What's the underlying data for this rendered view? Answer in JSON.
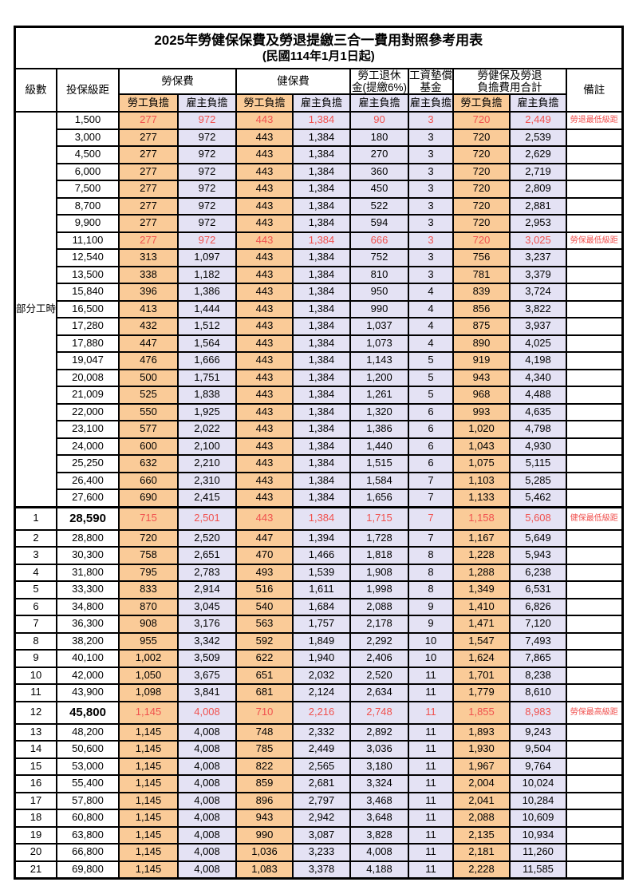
{
  "title": "2025年勞健保保費及勞退提繳三合一費用對照參考用表",
  "subtitle": "(民國114年1月1日起)",
  "columns": {
    "level": "級數",
    "bracket": "投保級距",
    "labor": "勞保費",
    "health": "健保費",
    "pension_line1": "勞工退休",
    "pension_line2": "金(提繳6%)",
    "fund_line1": "工資墊償",
    "fund_line2": "基金",
    "total_line1": "勞健保及勞退",
    "total_line2": "負擔費用合計",
    "note": "備註",
    "employee_label": "勞工負擔",
    "employer_label": "雇主負擔"
  },
  "part_time_label": "部分工時",
  "part_time_rowspan": 23,
  "colors": {
    "employee_bg": "#FACB98",
    "employer_bg": "#E4E2F4",
    "highlight_text": "#F0514E",
    "border": "#000000"
  },
  "rows": [
    {
      "level": "",
      "salary": "1,500",
      "values": [
        "277",
        "972",
        "443",
        "1,384",
        "90",
        "3",
        "720",
        "2,449"
      ],
      "note": "勞退最低級距",
      "highlight": true,
      "bold": false,
      "tall": false,
      "section": false
    },
    {
      "level": "",
      "salary": "3,000",
      "values": [
        "277",
        "972",
        "443",
        "1,384",
        "180",
        "3",
        "720",
        "2,539"
      ],
      "note": "",
      "highlight": false,
      "bold": false,
      "tall": false,
      "section": false
    },
    {
      "level": "",
      "salary": "4,500",
      "values": [
        "277",
        "972",
        "443",
        "1,384",
        "270",
        "3",
        "720",
        "2,629"
      ],
      "note": "",
      "highlight": false,
      "bold": false,
      "tall": false,
      "section": false
    },
    {
      "level": "",
      "salary": "6,000",
      "values": [
        "277",
        "972",
        "443",
        "1,384",
        "360",
        "3",
        "720",
        "2,719"
      ],
      "note": "",
      "highlight": false,
      "bold": false,
      "tall": false,
      "section": false
    },
    {
      "level": "",
      "salary": "7,500",
      "values": [
        "277",
        "972",
        "443",
        "1,384",
        "450",
        "3",
        "720",
        "2,809"
      ],
      "note": "",
      "highlight": false,
      "bold": false,
      "tall": false,
      "section": false
    },
    {
      "level": "",
      "salary": "8,700",
      "values": [
        "277",
        "972",
        "443",
        "1,384",
        "522",
        "3",
        "720",
        "2,881"
      ],
      "note": "",
      "highlight": false,
      "bold": false,
      "tall": false,
      "section": false
    },
    {
      "level": "",
      "salary": "9,900",
      "values": [
        "277",
        "972",
        "443",
        "1,384",
        "594",
        "3",
        "720",
        "2,953"
      ],
      "note": "",
      "highlight": false,
      "bold": false,
      "tall": false,
      "section": false
    },
    {
      "level": "",
      "salary": "11,100",
      "values": [
        "277",
        "972",
        "443",
        "1,384",
        "666",
        "3",
        "720",
        "3,025"
      ],
      "note": "勞保最低級距",
      "highlight": true,
      "bold": false,
      "tall": false,
      "section": false
    },
    {
      "level": "",
      "salary": "12,540",
      "values": [
        "313",
        "1,097",
        "443",
        "1,384",
        "752",
        "3",
        "756",
        "3,237"
      ],
      "note": "",
      "highlight": false,
      "bold": false,
      "tall": false,
      "section": false
    },
    {
      "level": "",
      "salary": "13,500",
      "values": [
        "338",
        "1,182",
        "443",
        "1,384",
        "810",
        "3",
        "781",
        "3,379"
      ],
      "note": "",
      "highlight": false,
      "bold": false,
      "tall": false,
      "section": false
    },
    {
      "level": "",
      "salary": "15,840",
      "values": [
        "396",
        "1,386",
        "443",
        "1,384",
        "950",
        "4",
        "839",
        "3,724"
      ],
      "note": "",
      "highlight": false,
      "bold": false,
      "tall": false,
      "section": false
    },
    {
      "level": "",
      "salary": "16,500",
      "values": [
        "413",
        "1,444",
        "443",
        "1,384",
        "990",
        "4",
        "856",
        "3,822"
      ],
      "note": "",
      "highlight": false,
      "bold": false,
      "tall": false,
      "section": false
    },
    {
      "level": "",
      "salary": "17,280",
      "values": [
        "432",
        "1,512",
        "443",
        "1,384",
        "1,037",
        "4",
        "875",
        "3,937"
      ],
      "note": "",
      "highlight": false,
      "bold": false,
      "tall": false,
      "section": false
    },
    {
      "level": "",
      "salary": "17,880",
      "values": [
        "447",
        "1,564",
        "443",
        "1,384",
        "1,073",
        "4",
        "890",
        "4,025"
      ],
      "note": "",
      "highlight": false,
      "bold": false,
      "tall": false,
      "section": false
    },
    {
      "level": "",
      "salary": "19,047",
      "values": [
        "476",
        "1,666",
        "443",
        "1,384",
        "1,143",
        "5",
        "919",
        "4,198"
      ],
      "note": "",
      "highlight": false,
      "bold": false,
      "tall": false,
      "section": false
    },
    {
      "level": "",
      "salary": "20,008",
      "values": [
        "500",
        "1,751",
        "443",
        "1,384",
        "1,200",
        "5",
        "943",
        "4,340"
      ],
      "note": "",
      "highlight": false,
      "bold": false,
      "tall": false,
      "section": false
    },
    {
      "level": "",
      "salary": "21,009",
      "values": [
        "525",
        "1,838",
        "443",
        "1,384",
        "1,261",
        "5",
        "968",
        "4,488"
      ],
      "note": "",
      "highlight": false,
      "bold": false,
      "tall": false,
      "section": false
    },
    {
      "level": "",
      "salary": "22,000",
      "values": [
        "550",
        "1,925",
        "443",
        "1,384",
        "1,320",
        "6",
        "993",
        "4,635"
      ],
      "note": "",
      "highlight": false,
      "bold": false,
      "tall": false,
      "section": false
    },
    {
      "level": "",
      "salary": "23,100",
      "values": [
        "577",
        "2,022",
        "443",
        "1,384",
        "1,386",
        "6",
        "1,020",
        "4,798"
      ],
      "note": "",
      "highlight": false,
      "bold": false,
      "tall": false,
      "section": false
    },
    {
      "level": "",
      "salary": "24,000",
      "values": [
        "600",
        "2,100",
        "443",
        "1,384",
        "1,440",
        "6",
        "1,043",
        "4,930"
      ],
      "note": "",
      "highlight": false,
      "bold": false,
      "tall": false,
      "section": false
    },
    {
      "level": "",
      "salary": "25,250",
      "values": [
        "632",
        "2,210",
        "443",
        "1,384",
        "1,515",
        "6",
        "1,075",
        "5,115"
      ],
      "note": "",
      "highlight": false,
      "bold": false,
      "tall": false,
      "section": false
    },
    {
      "level": "",
      "salary": "26,400",
      "values": [
        "660",
        "2,310",
        "443",
        "1,384",
        "1,584",
        "7",
        "1,103",
        "5,285"
      ],
      "note": "",
      "highlight": false,
      "bold": false,
      "tall": false,
      "section": false
    },
    {
      "level": "",
      "salary": "27,600",
      "values": [
        "690",
        "2,415",
        "443",
        "1,384",
        "1,656",
        "7",
        "1,133",
        "5,462"
      ],
      "note": "",
      "highlight": false,
      "bold": false,
      "tall": false,
      "section": false
    },
    {
      "level": "1",
      "salary": "28,590",
      "values": [
        "715",
        "2,501",
        "443",
        "1,384",
        "1,715",
        "7",
        "1,158",
        "5,608"
      ],
      "note": "健保最低級距",
      "highlight": true,
      "bold": true,
      "tall": true,
      "section": true
    },
    {
      "level": "2",
      "salary": "28,800",
      "values": [
        "720",
        "2,520",
        "447",
        "1,394",
        "1,728",
        "7",
        "1,167",
        "5,649"
      ],
      "note": "",
      "highlight": false,
      "bold": false,
      "tall": false,
      "section": false
    },
    {
      "level": "3",
      "salary": "30,300",
      "values": [
        "758",
        "2,651",
        "470",
        "1,466",
        "1,818",
        "8",
        "1,228",
        "5,943"
      ],
      "note": "",
      "highlight": false,
      "bold": false,
      "tall": false,
      "section": false
    },
    {
      "level": "4",
      "salary": "31,800",
      "values": [
        "795",
        "2,783",
        "493",
        "1,539",
        "1,908",
        "8",
        "1,288",
        "6,238"
      ],
      "note": "",
      "highlight": false,
      "bold": false,
      "tall": false,
      "section": false
    },
    {
      "level": "5",
      "salary": "33,300",
      "values": [
        "833",
        "2,914",
        "516",
        "1,611",
        "1,998",
        "8",
        "1,349",
        "6,531"
      ],
      "note": "",
      "highlight": false,
      "bold": false,
      "tall": false,
      "section": false
    },
    {
      "level": "6",
      "salary": "34,800",
      "values": [
        "870",
        "3,045",
        "540",
        "1,684",
        "2,088",
        "9",
        "1,410",
        "6,826"
      ],
      "note": "",
      "highlight": false,
      "bold": false,
      "tall": false,
      "section": false
    },
    {
      "level": "7",
      "salary": "36,300",
      "values": [
        "908",
        "3,176",
        "563",
        "1,757",
        "2,178",
        "9",
        "1,471",
        "7,120"
      ],
      "note": "",
      "highlight": false,
      "bold": false,
      "tall": false,
      "section": false
    },
    {
      "level": "8",
      "salary": "38,200",
      "values": [
        "955",
        "3,342",
        "592",
        "1,849",
        "2,292",
        "10",
        "1,547",
        "7,493"
      ],
      "note": "",
      "highlight": false,
      "bold": false,
      "tall": false,
      "section": false
    },
    {
      "level": "9",
      "salary": "40,100",
      "values": [
        "1,002",
        "3,509",
        "622",
        "1,940",
        "2,406",
        "10",
        "1,624",
        "7,865"
      ],
      "note": "",
      "highlight": false,
      "bold": false,
      "tall": false,
      "section": false
    },
    {
      "level": "10",
      "salary": "42,000",
      "values": [
        "1,050",
        "3,675",
        "651",
        "2,032",
        "2,520",
        "11",
        "1,701",
        "8,238"
      ],
      "note": "",
      "highlight": false,
      "bold": false,
      "tall": false,
      "section": false
    },
    {
      "level": "11",
      "salary": "43,900",
      "values": [
        "1,098",
        "3,841",
        "681",
        "2,124",
        "2,634",
        "11",
        "1,779",
        "8,610"
      ],
      "note": "",
      "highlight": false,
      "bold": false,
      "tall": false,
      "section": false
    },
    {
      "level": "12",
      "salary": "45,800",
      "values": [
        "1,145",
        "4,008",
        "710",
        "2,216",
        "2,748",
        "11",
        "1,855",
        "8,983"
      ],
      "note": "勞保最高級距",
      "highlight": true,
      "bold": true,
      "tall": true,
      "section": false
    },
    {
      "level": "13",
      "salary": "48,200",
      "values": [
        "1,145",
        "4,008",
        "748",
        "2,332",
        "2,892",
        "11",
        "1,893",
        "9,243"
      ],
      "note": "",
      "highlight": false,
      "bold": false,
      "tall": false,
      "section": false
    },
    {
      "level": "14",
      "salary": "50,600",
      "values": [
        "1,145",
        "4,008",
        "785",
        "2,449",
        "3,036",
        "11",
        "1,930",
        "9,504"
      ],
      "note": "",
      "highlight": false,
      "bold": false,
      "tall": false,
      "section": false
    },
    {
      "level": "15",
      "salary": "53,000",
      "values": [
        "1,145",
        "4,008",
        "822",
        "2,565",
        "3,180",
        "11",
        "1,967",
        "9,764"
      ],
      "note": "",
      "highlight": false,
      "bold": false,
      "tall": false,
      "section": false
    },
    {
      "level": "16",
      "salary": "55,400",
      "values": [
        "1,145",
        "4,008",
        "859",
        "2,681",
        "3,324",
        "11",
        "2,004",
        "10,024"
      ],
      "note": "",
      "highlight": false,
      "bold": false,
      "tall": false,
      "section": false
    },
    {
      "level": "17",
      "salary": "57,800",
      "values": [
        "1,145",
        "4,008",
        "896",
        "2,797",
        "3,468",
        "11",
        "2,041",
        "10,284"
      ],
      "note": "",
      "highlight": false,
      "bold": false,
      "tall": false,
      "section": false
    },
    {
      "level": "18",
      "salary": "60,800",
      "values": [
        "1,145",
        "4,008",
        "943",
        "2,942",
        "3,648",
        "11",
        "2,088",
        "10,609"
      ],
      "note": "",
      "highlight": false,
      "bold": false,
      "tall": false,
      "section": false
    },
    {
      "level": "19",
      "salary": "63,800",
      "values": [
        "1,145",
        "4,008",
        "990",
        "3,087",
        "3,828",
        "11",
        "2,135",
        "10,934"
      ],
      "note": "",
      "highlight": false,
      "bold": false,
      "tall": false,
      "section": false
    },
    {
      "level": "20",
      "salary": "66,800",
      "values": [
        "1,145",
        "4,008",
        "1,036",
        "3,233",
        "4,008",
        "11",
        "2,181",
        "11,260"
      ],
      "note": "",
      "highlight": false,
      "bold": false,
      "tall": false,
      "section": false
    },
    {
      "level": "21",
      "salary": "69,800",
      "values": [
        "1,145",
        "4,008",
        "1,083",
        "3,378",
        "4,188",
        "11",
        "2,228",
        "11,585"
      ],
      "note": "",
      "highlight": false,
      "bold": false,
      "tall": false,
      "section": false
    }
  ]
}
